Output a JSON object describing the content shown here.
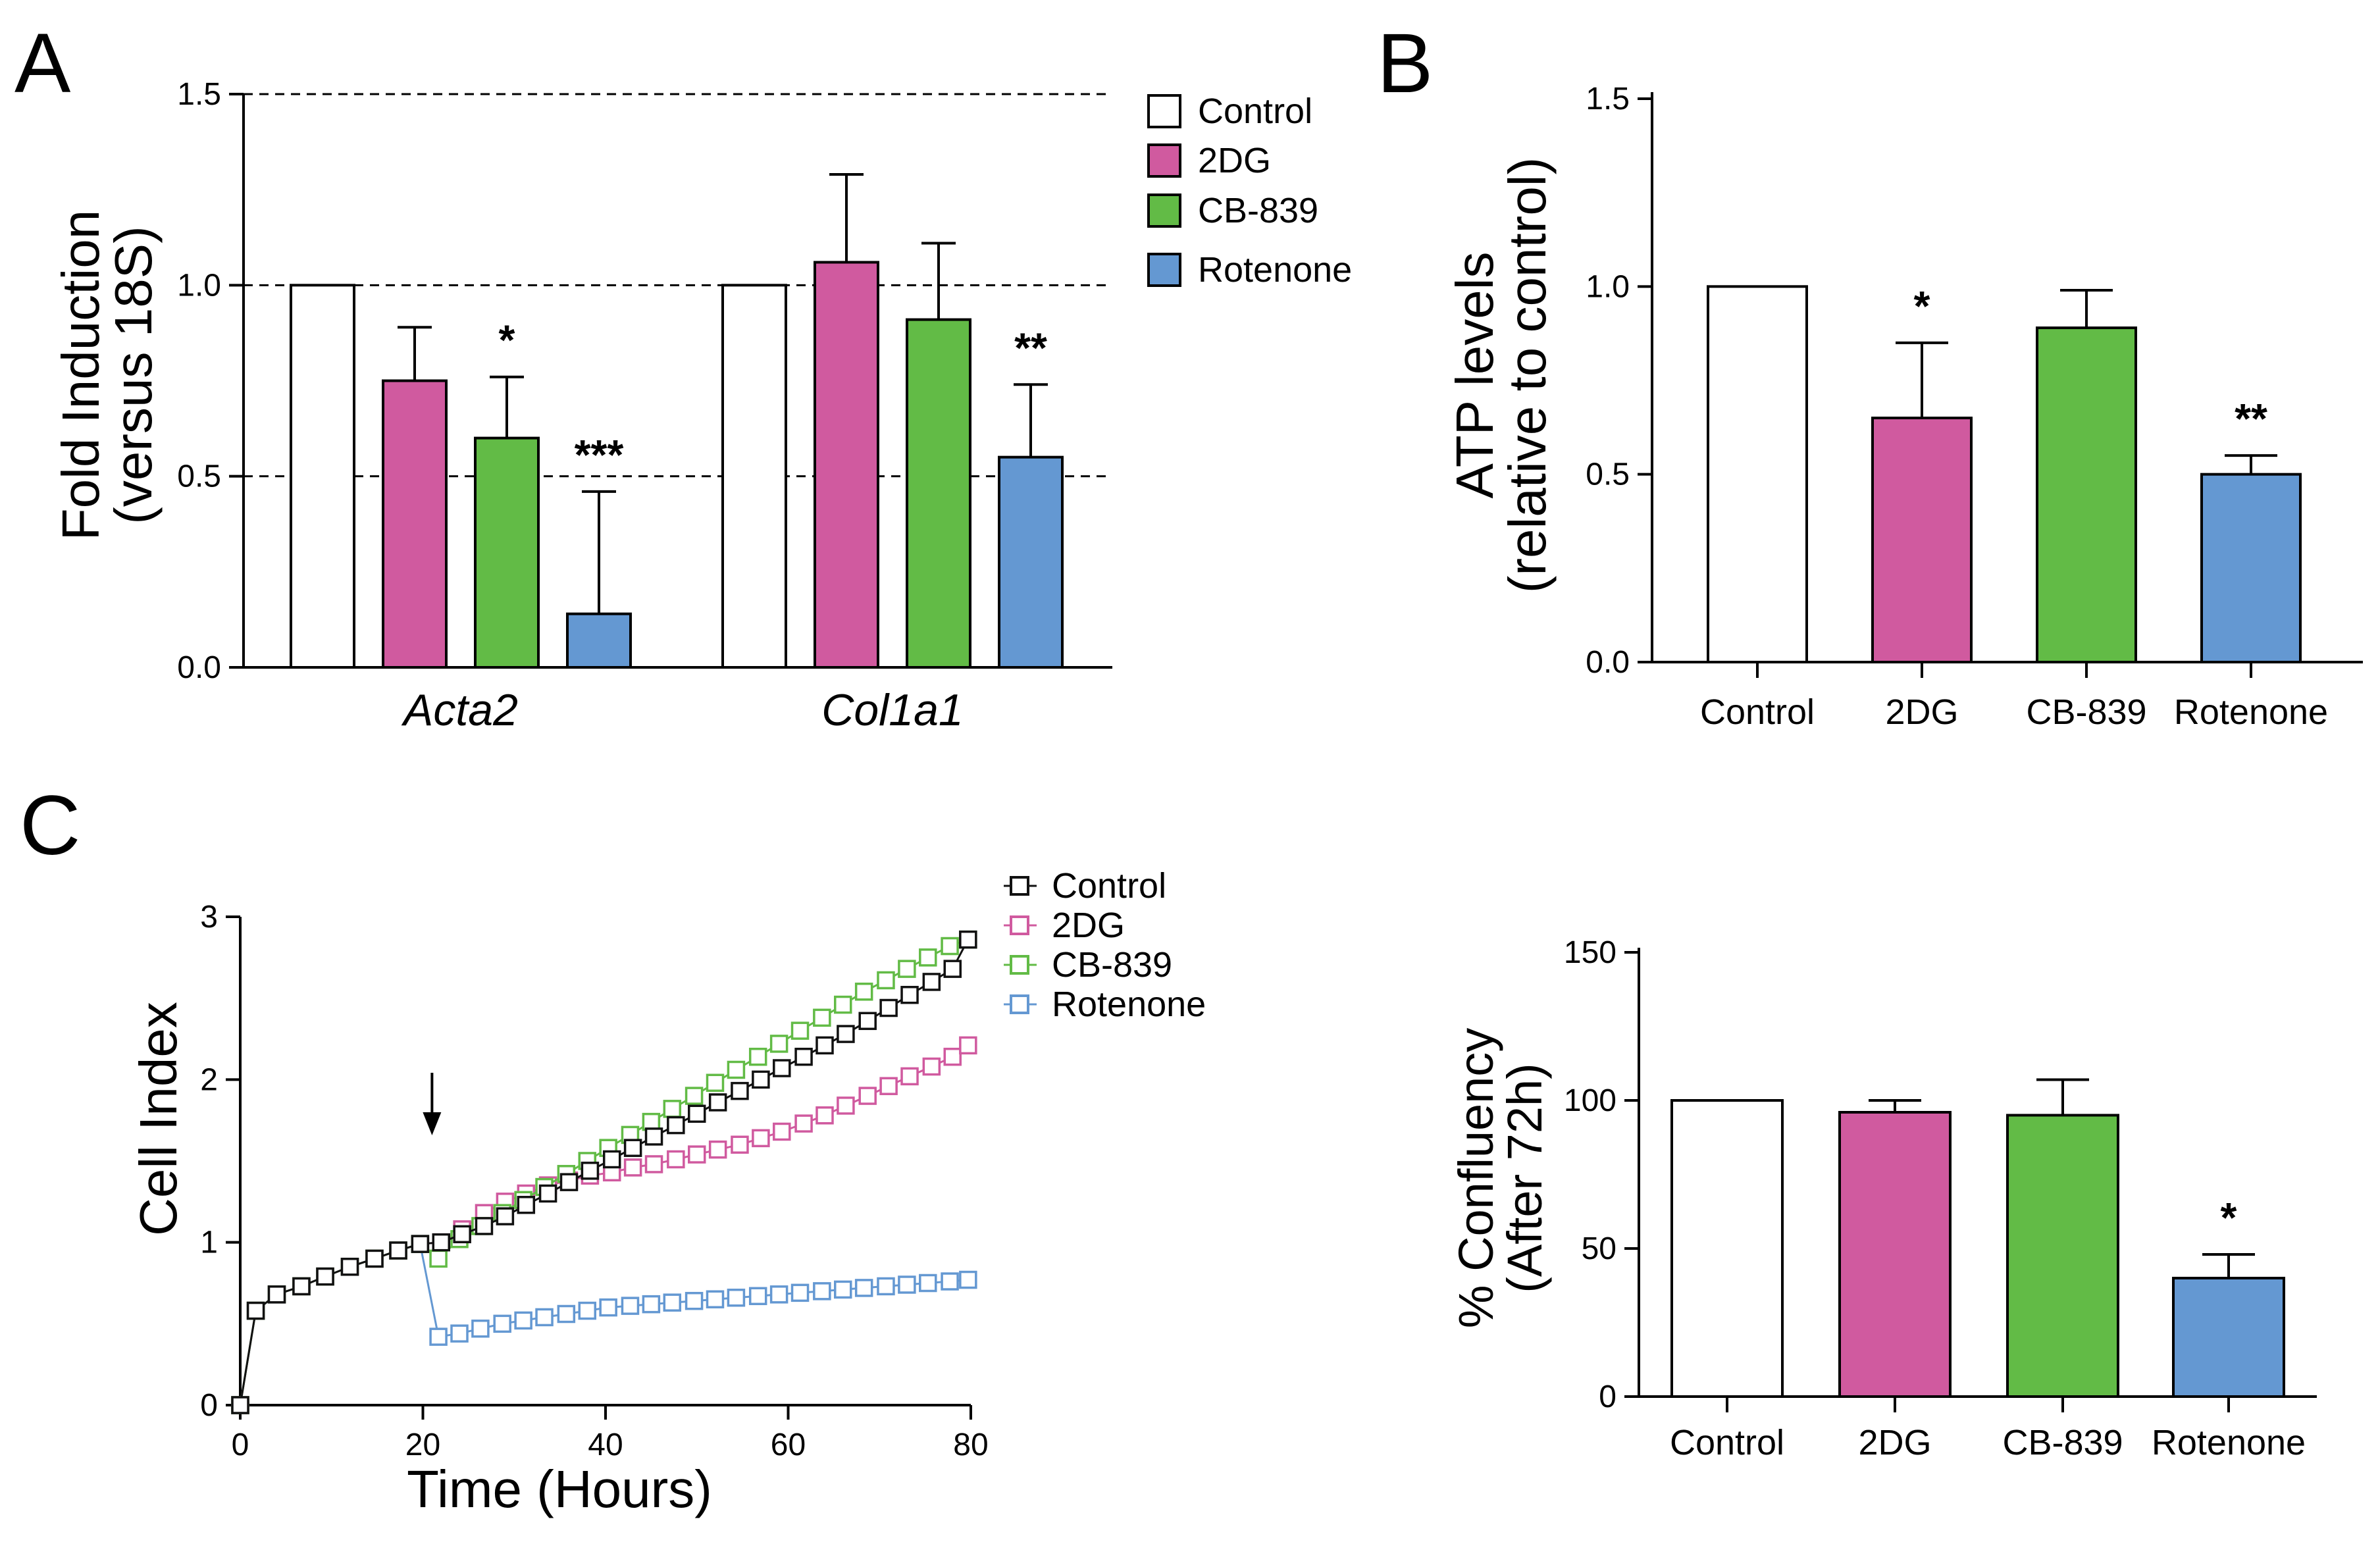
{
  "colors": {
    "Control": "#ffffff",
    "2DG": "#d05a9f",
    "CB-839": "#62bb46",
    "Rotenone": "#6498d2",
    "ControlLine": "#111111"
  },
  "chart_data": [
    {
      "panel": "A",
      "type": "bar",
      "categories": [
        "Acta2",
        "Col1a1"
      ],
      "series": [
        {
          "name": "Control",
          "values": [
            1.0,
            1.0
          ],
          "errors": [
            0,
            0
          ]
        },
        {
          "name": "2DG",
          "values": [
            0.75,
            1.06
          ],
          "errors": [
            0.14,
            0.23
          ]
        },
        {
          "name": "CB-839",
          "values": [
            0.6,
            0.91
          ],
          "errors": [
            0.16,
            0.2
          ]
        },
        {
          "name": "Rotenone",
          "values": [
            0.14,
            0.55
          ],
          "errors": [
            0.32,
            0.19
          ]
        }
      ],
      "significance": [
        [
          "",
          "",
          "*",
          "***"
        ],
        [
          "",
          "",
          "",
          "**"
        ]
      ],
      "title": "",
      "xlabel": "",
      "ylabel": [
        "Fold Induction",
        "(versus 18S)"
      ],
      "ylim": [
        0,
        1.5
      ],
      "yticks": [
        "0.0",
        "0.5",
        "1.0",
        "1.5"
      ],
      "grid": "dashed at 0.5, 1.0, 1.5",
      "legend": "right"
    },
    {
      "panel": "B",
      "type": "bar",
      "categories": [
        "Control",
        "2DG",
        "CB-839",
        "Rotenone"
      ],
      "values": [
        1.0,
        0.65,
        0.89,
        0.5
      ],
      "errors": [
        0,
        0.2,
        0.1,
        0.05
      ],
      "significance": [
        "",
        "*",
        "",
        "**"
      ],
      "title": "",
      "xlabel": "",
      "ylabel": [
        "ATP levels",
        "(relative to control)"
      ],
      "ylim": [
        0,
        1.5
      ],
      "yticks": [
        "0.0",
        "0.5",
        "1.0",
        "1.5"
      ]
    },
    {
      "panel": "C",
      "type": "line",
      "title": "",
      "xlabel": "Time (Hours)",
      "ylabel": "Cell  Index",
      "xlim": [
        0,
        80
      ],
      "ylim": [
        0,
        3
      ],
      "xticks": [
        "0",
        "20",
        "40",
        "60",
        "80"
      ],
      "yticks": [
        "0",
        "1",
        "2",
        "3"
      ],
      "arrow_at_x": 21,
      "series": [
        {
          "name": "Control",
          "x": [
            0,
            1.7,
            4,
            6.7,
            9.3,
            12,
            14.7,
            17.3,
            19.7,
            22,
            24.3,
            26.7,
            29,
            31.3,
            33.7,
            36,
            38.3,
            40.7,
            43,
            45.3,
            47.7,
            50,
            52.3,
            54.7,
            57,
            59.3,
            61.7,
            64,
            66.3,
            68.7,
            71,
            73.3,
            75.7,
            78,
            79.7
          ],
          "y": [
            0,
            0.58,
            0.68,
            0.73,
            0.79,
            0.85,
            0.9,
            0.95,
            0.99,
            1.0,
            1.05,
            1.1,
            1.16,
            1.23,
            1.3,
            1.37,
            1.44,
            1.51,
            1.58,
            1.65,
            1.72,
            1.79,
            1.86,
            1.93,
            2.0,
            2.07,
            2.14,
            2.21,
            2.28,
            2.36,
            2.44,
            2.52,
            2.6,
            2.68,
            2.86
          ]
        },
        {
          "name": "2DG",
          "x": [
            0,
            1.7,
            4,
            6.7,
            9.3,
            12,
            14.7,
            17.3,
            19.7,
            22,
            24.3,
            26.7,
            29,
            31.3,
            33.7,
            36,
            38.3,
            40.7,
            43,
            45.3,
            47.7,
            50,
            52.3,
            54.7,
            57,
            59.3,
            61.7,
            64,
            66.3,
            68.7,
            71,
            73.3,
            75.7,
            78,
            79.7
          ],
          "y": [
            0,
            0.58,
            0.68,
            0.73,
            0.79,
            0.85,
            0.9,
            0.95,
            0.99,
            1.0,
            1.08,
            1.18,
            1.25,
            1.3,
            1.35,
            1.38,
            1.41,
            1.43,
            1.46,
            1.48,
            1.51,
            1.54,
            1.57,
            1.6,
            1.64,
            1.68,
            1.73,
            1.78,
            1.84,
            1.9,
            1.96,
            2.02,
            2.08,
            2.14,
            2.21
          ]
        },
        {
          "name": "CB-839",
          "x": [
            0,
            1.7,
            4,
            6.7,
            9.3,
            12,
            14.7,
            17.3,
            19.7,
            21.7,
            24,
            26.3,
            28.7,
            31,
            33.3,
            35.7,
            38,
            40.3,
            42.7,
            45,
            47.3,
            49.7,
            52,
            54.3,
            56.7,
            59,
            61.3,
            63.7,
            66,
            68.3,
            70.7,
            73,
            75.3,
            77.7,
            79.7
          ],
          "y": [
            0,
            0.58,
            0.68,
            0.73,
            0.79,
            0.85,
            0.9,
            0.95,
            0.99,
            0.9,
            1.02,
            1.1,
            1.18,
            1.26,
            1.34,
            1.42,
            1.5,
            1.58,
            1.66,
            1.74,
            1.82,
            1.9,
            1.98,
            2.06,
            2.14,
            2.22,
            2.3,
            2.38,
            2.46,
            2.54,
            2.61,
            2.68,
            2.75,
            2.82,
            2.86
          ]
        },
        {
          "name": "Rotenone",
          "x": [
            0,
            1.7,
            4,
            6.7,
            9.3,
            12,
            14.7,
            17.3,
            19.7,
            21.7,
            24,
            26.3,
            28.7,
            31,
            33.3,
            35.7,
            38,
            40.3,
            42.7,
            45,
            47.3,
            49.7,
            52,
            54.3,
            56.7,
            59,
            61.3,
            63.7,
            66,
            68.3,
            70.7,
            73,
            75.3,
            77.7,
            79.7
          ],
          "y": [
            0,
            0.58,
            0.68,
            0.73,
            0.79,
            0.85,
            0.9,
            0.95,
            0.99,
            0.42,
            0.44,
            0.47,
            0.5,
            0.52,
            0.54,
            0.56,
            0.58,
            0.6,
            0.61,
            0.62,
            0.63,
            0.64,
            0.65,
            0.66,
            0.67,
            0.68,
            0.69,
            0.7,
            0.71,
            0.72,
            0.73,
            0.74,
            0.75,
            0.76,
            0.77
          ]
        }
      ],
      "legend": "top-right"
    },
    {
      "panel": "C-right",
      "type": "bar",
      "categories": [
        "Control",
        "2DG",
        "CB-839",
        "Rotenone"
      ],
      "values": [
        100,
        96,
        95,
        40
      ],
      "errors": [
        0,
        4,
        12,
        8
      ],
      "significance": [
        "",
        "",
        "",
        "*"
      ],
      "title": "",
      "xlabel": "",
      "ylabel": [
        "% Confluency",
        "(After 72h)"
      ],
      "ylim": [
        0,
        150
      ],
      "yticks": [
        "0",
        "50",
        "100",
        "150"
      ]
    }
  ],
  "panel_letters": {
    "a": "A",
    "b": "B",
    "c": "C"
  },
  "legend_labels": [
    "Control",
    "2DG",
    "CB-839",
    "Rotenone"
  ]
}
